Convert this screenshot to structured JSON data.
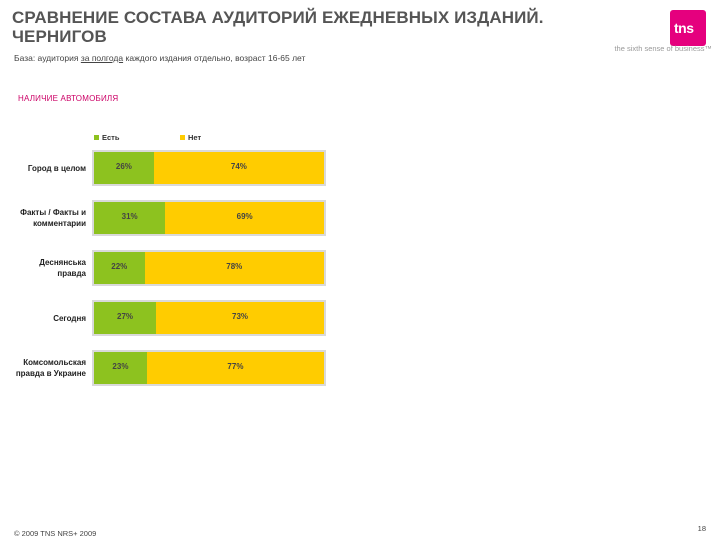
{
  "header": {
    "title_line1": "СРАВНЕНИЕ СОСТАВА АУДИТОРИЙ ЕЖЕДНЕВНЫХ ИЗДАНИЙ.",
    "title_line2": "ЧЕРНИГОВ",
    "base_prefix": "База: аудитория ",
    "base_underlined": "за полгода",
    "base_suffix": " каждого издания отдельно, возраст 16-65 лет"
  },
  "logo": {
    "text": "tns",
    "tagline": "the sixth sense of business™",
    "color": "#e5007e"
  },
  "section_label": "НАЛИЧИЕ АВТОМОБИЛЯ",
  "colors": {
    "yes": "#8dc21f",
    "no": "#ffcc00",
    "frame": "#d9d9d9"
  },
  "chart_data": {
    "type": "bar",
    "orientation": "horizontal",
    "stacked": true,
    "normalized": true,
    "legend": {
      "position": "top",
      "entries": [
        "Есть",
        "Нет"
      ]
    },
    "categories": [
      "Город в целом",
      "Факты / Факты и комментарии",
      "Деснянська правда",
      "Сегодня",
      "Комсомольская правда в Украине"
    ],
    "category_lines": [
      [
        "Город в целом"
      ],
      [
        "Факты / Факты и",
        "комментарии"
      ],
      [
        "Деснянська",
        "правда"
      ],
      [
        "Сегодня"
      ],
      [
        "Комсомольская",
        "правда в Украине"
      ]
    ],
    "series": [
      {
        "name": "Есть",
        "values": [
          26,
          31,
          22,
          27,
          23
        ],
        "labels": [
          "26%",
          "31%",
          "22%",
          "27%",
          "23%"
        ]
      },
      {
        "name": "Нет",
        "values": [
          74,
          69,
          78,
          73,
          77
        ],
        "labels": [
          "74%",
          "69%",
          "78%",
          "73%",
          "77%"
        ]
      }
    ],
    "xlim": [
      0,
      100
    ]
  },
  "footer": {
    "copyright": "© 2009 TNS   NRS+ 2009",
    "page_number": "18"
  }
}
